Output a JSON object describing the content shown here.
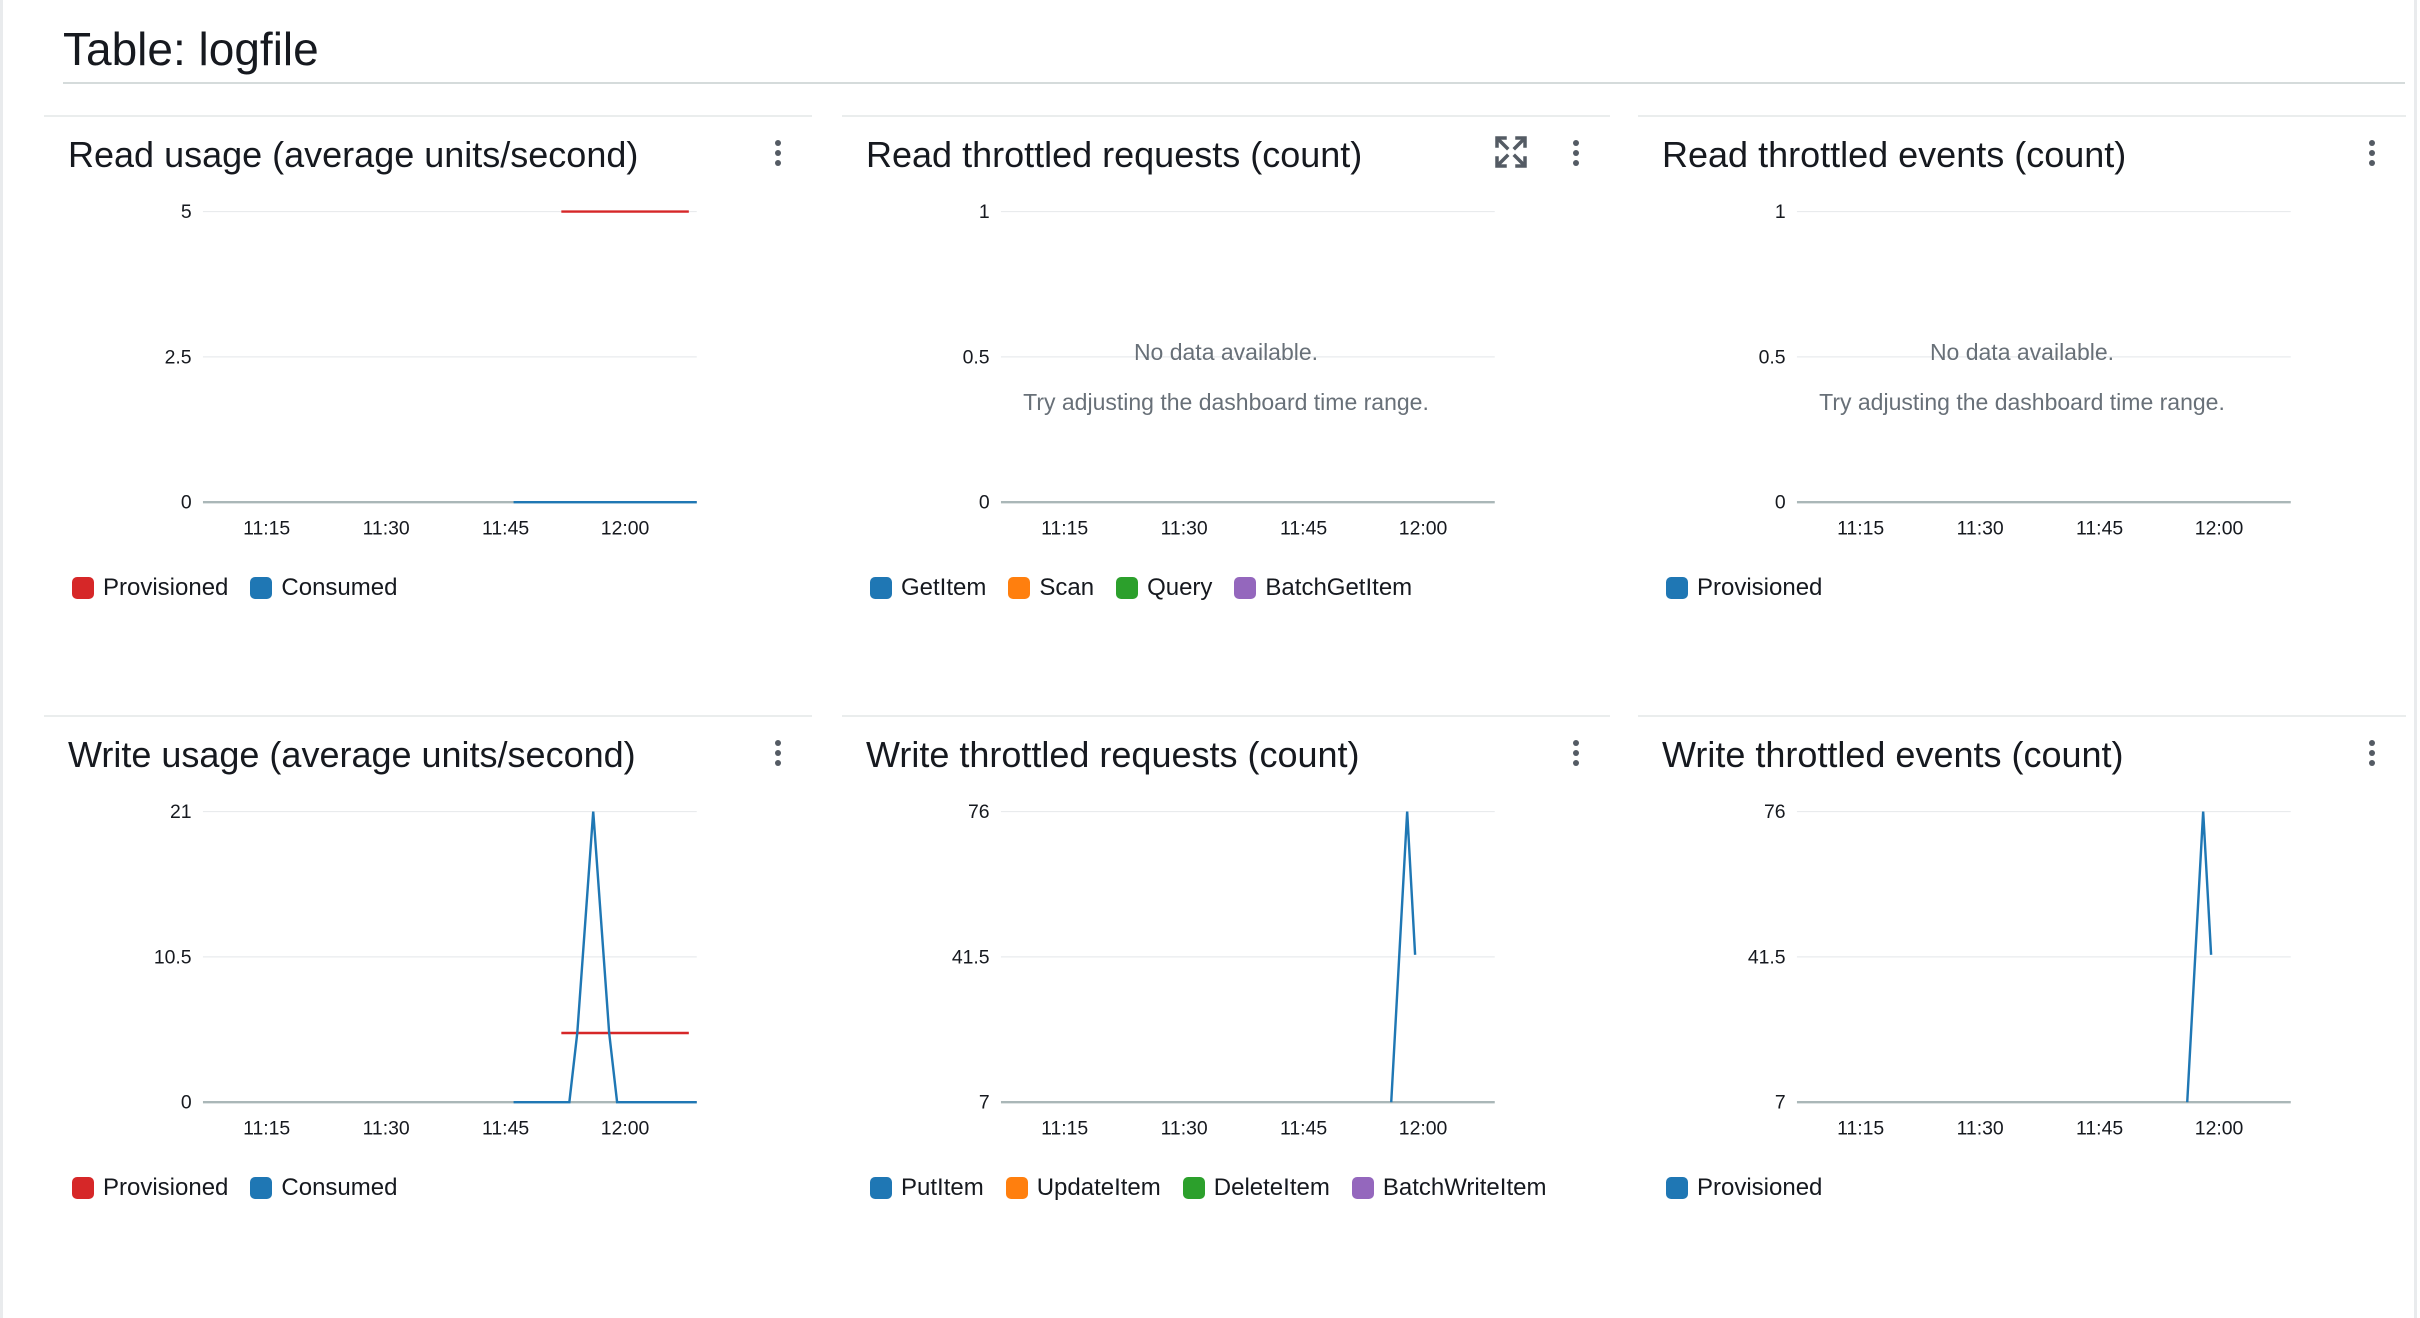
{
  "page": {
    "title": "Table: logfile"
  },
  "nodata": {
    "line1": "No data available.",
    "line2": "Try adjusting the dashboard time range."
  },
  "icons": {
    "menu": "more-vertical-icon",
    "expand": "expand-icon"
  },
  "chart_data": [
    {
      "type": "line",
      "title": "Read usage (average units/second)",
      "x_ticks": [
        "11:15",
        "11:30",
        "11:45",
        "12:00"
      ],
      "y_ticks": [
        "0",
        "2.5",
        "5"
      ],
      "ylim": [
        0,
        5
      ],
      "xlim": [
        "11:07",
        "12:09"
      ],
      "grid": true,
      "legend_position": "bottom-left",
      "series": [
        {
          "name": "Provisioned",
          "color": "#d62728",
          "x": [
            "11:52",
            "12:08"
          ],
          "y": [
            5,
            5
          ]
        },
        {
          "name": "Consumed",
          "color": "#1f77b4",
          "x": [
            "11:46",
            "12:09"
          ],
          "y": [
            0,
            0
          ]
        }
      ],
      "has_data": true
    },
    {
      "type": "line",
      "title": "Read throttled requests (count)",
      "x_ticks": [
        "11:15",
        "11:30",
        "11:45",
        "12:00"
      ],
      "y_ticks": [
        "0",
        "0.5",
        "1"
      ],
      "ylim": [
        0,
        1
      ],
      "xlim": [
        "11:07",
        "12:09"
      ],
      "grid": true,
      "legend_position": "bottom-left",
      "expandable": true,
      "series": [
        {
          "name": "GetItem",
          "color": "#1f77b4",
          "x": [],
          "y": []
        },
        {
          "name": "Scan",
          "color": "#ff7f0e",
          "x": [],
          "y": []
        },
        {
          "name": "Query",
          "color": "#2ca02c",
          "x": [],
          "y": []
        },
        {
          "name": "BatchGetItem",
          "color": "#9467bd",
          "x": [],
          "y": []
        }
      ],
      "has_data": false
    },
    {
      "type": "line",
      "title": "Read throttled events (count)",
      "x_ticks": [
        "11:15",
        "11:30",
        "11:45",
        "12:00"
      ],
      "y_ticks": [
        "0",
        "0.5",
        "1"
      ],
      "ylim": [
        0,
        1
      ],
      "xlim": [
        "11:07",
        "12:09"
      ],
      "grid": true,
      "legend_position": "bottom-left",
      "series": [
        {
          "name": "Provisioned",
          "color": "#1f77b4",
          "x": [],
          "y": []
        }
      ],
      "has_data": false
    },
    {
      "type": "line",
      "title": "Write usage (average units/second)",
      "x_ticks": [
        "11:15",
        "11:30",
        "11:45",
        "12:00"
      ],
      "y_ticks": [
        "0",
        "10.5",
        "21"
      ],
      "ylim": [
        0,
        21
      ],
      "xlim": [
        "11:07",
        "12:09"
      ],
      "grid": true,
      "legend_position": "bottom-left",
      "series": [
        {
          "name": "Provisioned",
          "color": "#d62728",
          "x": [
            "11:52",
            "12:08"
          ],
          "y": [
            5,
            5
          ]
        },
        {
          "name": "Consumed",
          "color": "#1f77b4",
          "x": [
            "11:46",
            "11:51",
            "11:53",
            "11:54",
            "11:56",
            "11:58",
            "11:59",
            "12:09"
          ],
          "y": [
            0,
            0,
            0,
            5,
            21,
            5,
            0,
            0
          ]
        }
      ],
      "has_data": true
    },
    {
      "type": "line",
      "title": "Write throttled requests (count)",
      "x_ticks": [
        "11:15",
        "11:30",
        "11:45",
        "12:00"
      ],
      "y_ticks": [
        "7",
        "41.5",
        "76"
      ],
      "ylim": [
        7,
        76
      ],
      "xlim": [
        "11:07",
        "12:09"
      ],
      "grid": true,
      "legend_position": "bottom-left",
      "series": [
        {
          "name": "PutItem",
          "color": "#1f77b4",
          "x": [
            "11:56",
            "11:58",
            "11:59"
          ],
          "y": [
            7,
            76,
            42
          ]
        },
        {
          "name": "UpdateItem",
          "color": "#ff7f0e",
          "x": [],
          "y": []
        },
        {
          "name": "DeleteItem",
          "color": "#2ca02c",
          "x": [],
          "y": []
        },
        {
          "name": "BatchWriteItem",
          "color": "#9467bd",
          "x": [],
          "y": []
        }
      ],
      "has_data": true
    },
    {
      "type": "line",
      "title": "Write throttled events (count)",
      "x_ticks": [
        "11:15",
        "11:30",
        "11:45",
        "12:00"
      ],
      "y_ticks": [
        "7",
        "41.5",
        "76"
      ],
      "ylim": [
        7,
        76
      ],
      "xlim": [
        "11:07",
        "12:09"
      ],
      "grid": true,
      "legend_position": "bottom-left",
      "series": [
        {
          "name": "Provisioned",
          "color": "#1f77b4",
          "x": [
            "11:56",
            "11:58",
            "11:59"
          ],
          "y": [
            7,
            76,
            42
          ]
        }
      ],
      "has_data": true
    }
  ]
}
